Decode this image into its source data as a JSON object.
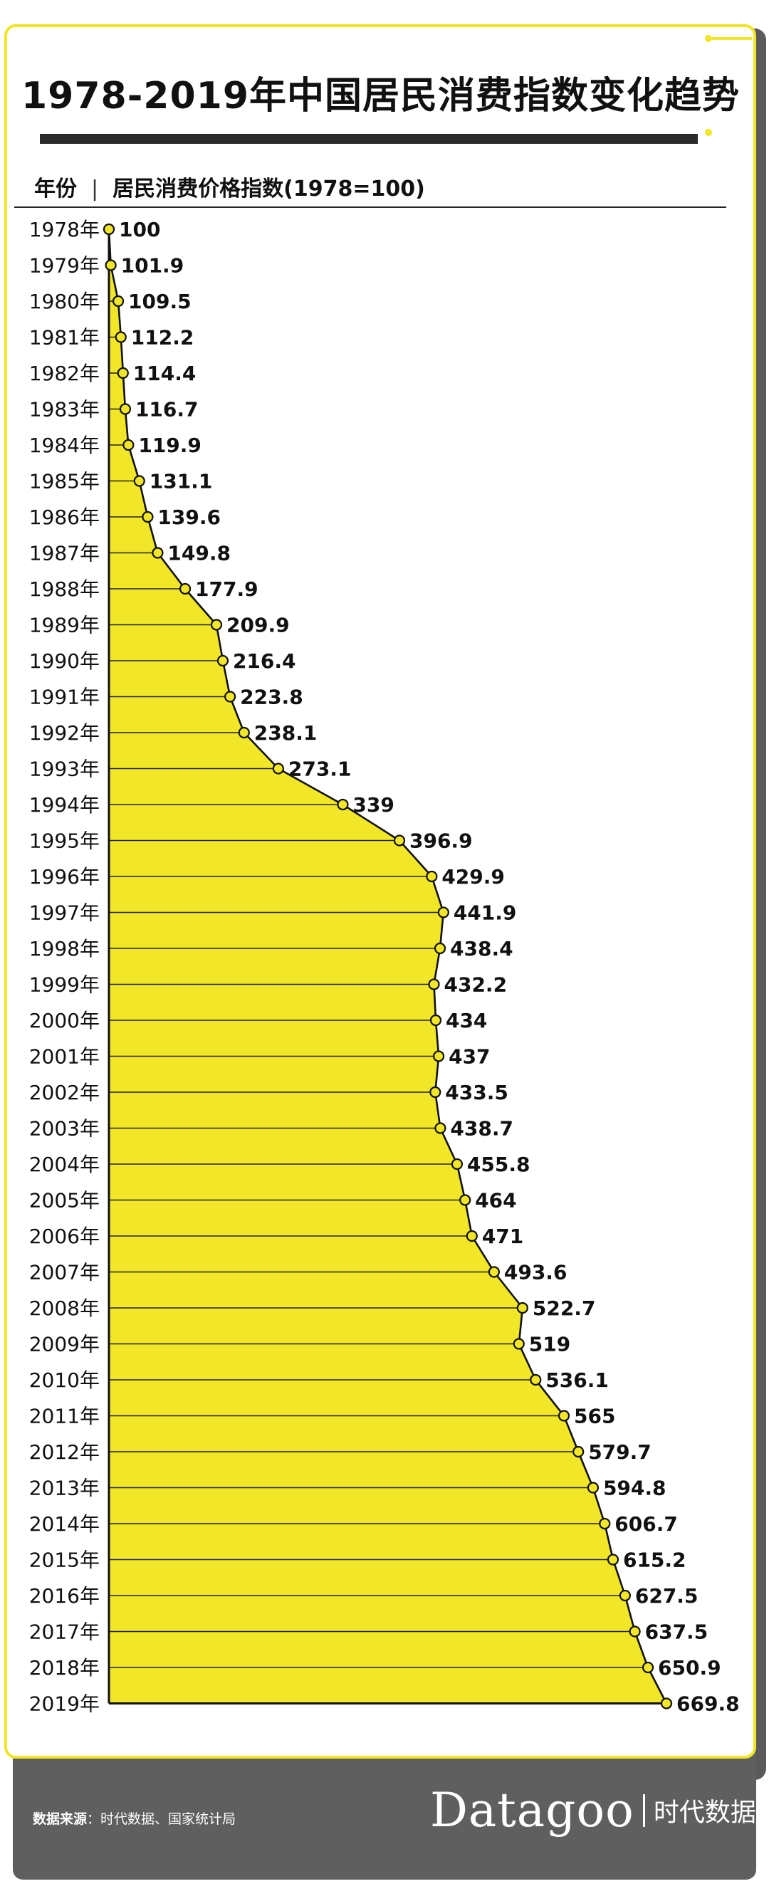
{
  "title": "1978-2019年中国居民消费指数变化趋势",
  "header": {
    "col_year": "年份",
    "separator": "|",
    "col_index": "居民消费价格指数(1978=100)"
  },
  "colors": {
    "fill": "#f1e627",
    "line": "#111111",
    "marker_fill": "#f1e627",
    "grid": "#222222",
    "footer_bg": "#5f5f5f"
  },
  "chart_data": {
    "type": "area",
    "orientation": "horizontal",
    "ylabel": "居民消费价格指数(1978=100)",
    "categories": [
      "1978年",
      "1979年",
      "1980年",
      "1981年",
      "1982年",
      "1983年",
      "1984年",
      "1985年",
      "1986年",
      "1987年",
      "1988年",
      "1989年",
      "1990年",
      "1991年",
      "1992年",
      "1993年",
      "1994年",
      "1995年",
      "1996年",
      "1997年",
      "1998年",
      "1999年",
      "2000年",
      "2001年",
      "2002年",
      "2003年",
      "2004年",
      "2005年",
      "2006年",
      "2007年",
      "2008年",
      "2009年",
      "2010年",
      "2011年",
      "2012年",
      "2013年",
      "2014年",
      "2015年",
      "2016年",
      "2017年",
      "2018年",
      "2019年"
    ],
    "values": [
      100,
      101.9,
      109.5,
      112.2,
      114.4,
      116.7,
      119.9,
      131.1,
      139.6,
      149.8,
      177.9,
      209.9,
      216.4,
      223.8,
      238.1,
      273.1,
      339,
      396.9,
      429.9,
      441.9,
      438.4,
      432.2,
      434,
      437,
      433.5,
      438.7,
      455.8,
      464,
      471,
      493.6,
      522.7,
      519,
      536.1,
      565,
      579.7,
      594.8,
      606.7,
      615.2,
      627.5,
      637.5,
      650.9,
      669.8
    ],
    "value_labels": [
      "100",
      "101.9",
      "109.5",
      "112.2",
      "114.4",
      "116.7",
      "119.9",
      "131.1",
      "139.6",
      "149.8",
      "177.9",
      "209.9",
      "216.4",
      "223.8",
      "238.1",
      "273.1",
      "339",
      "396.9",
      "429.9",
      "441.9",
      "438.4",
      "432.2",
      "434",
      "437",
      "433.5",
      "438.7",
      "455.8",
      "464",
      "471",
      "493.6",
      "522.7",
      "519",
      "536.1",
      "565",
      "579.7",
      "594.8",
      "606.7",
      "615.2",
      "627.5",
      "637.5",
      "650.9",
      "669.8"
    ],
    "data_labels": true,
    "grid": true
  },
  "footer": {
    "source_label": "数据来源",
    "source_text": "：时代数据、国家统计局",
    "brand_name": "Datagoo",
    "brand_cn": "时代数据"
  }
}
